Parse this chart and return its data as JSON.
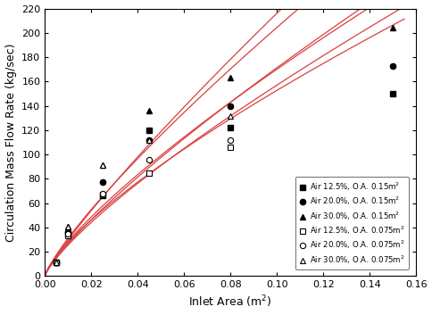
{
  "title": "",
  "xlabel": "Inlet Area (m$^2$)",
  "ylabel": "Circulation Mass Flow Rate (kg/sec)",
  "xlim": [
    0,
    0.16
  ],
  "ylim": [
    0,
    220
  ],
  "xticks": [
    0.0,
    0.02,
    0.04,
    0.06,
    0.08,
    0.1,
    0.12,
    0.14,
    0.16
  ],
  "yticks": [
    0,
    20,
    40,
    60,
    80,
    100,
    120,
    140,
    160,
    180,
    200,
    220
  ],
  "curve_color": "#d94040",
  "series": [
    {
      "label": "Air 12.5%, O.A. 0.15m$^2$",
      "marker": "s",
      "filled": true,
      "x_data": [
        0.005,
        0.01,
        0.025,
        0.045,
        0.08,
        0.15
      ],
      "y_data": [
        11,
        35,
        66,
        120,
        122,
        150
      ]
    },
    {
      "label": "Air 20.0%, O.A. 0.15m$^2$",
      "marker": "o",
      "filled": true,
      "x_data": [
        0.005,
        0.01,
        0.025,
        0.045,
        0.08,
        0.15
      ],
      "y_data": [
        11,
        36,
        77,
        112,
        140,
        173
      ]
    },
    {
      "label": "Air 30.0%, O.A. 0.15m$^2$",
      "marker": "^",
      "filled": true,
      "x_data": [
        0.005,
        0.01,
        0.025,
        0.045,
        0.08,
        0.15
      ],
      "y_data": [
        11,
        41,
        91,
        136,
        163,
        204
      ]
    },
    {
      "label": "Air 12.5%, O.A. 0.075m$^2$",
      "marker": "s",
      "filled": false,
      "x_data": [
        0.005,
        0.01,
        0.025,
        0.045,
        0.08
      ],
      "y_data": [
        11,
        33,
        67,
        85,
        106
      ]
    },
    {
      "label": "Air 20.0%, O.A. 0.075m$^2$",
      "marker": "o",
      "filled": false,
      "x_data": [
        0.005,
        0.01,
        0.025,
        0.045,
        0.08
      ],
      "y_data": [
        11,
        35,
        68,
        96,
        112
      ]
    },
    {
      "label": "Air 30.0%, O.A. 0.075m$^2$",
      "marker": "^",
      "filled": false,
      "x_data": [
        0.005,
        0.01,
        0.025,
        0.045,
        0.08
      ],
      "y_data": [
        11,
        41,
        91,
        112,
        132
      ]
    }
  ]
}
